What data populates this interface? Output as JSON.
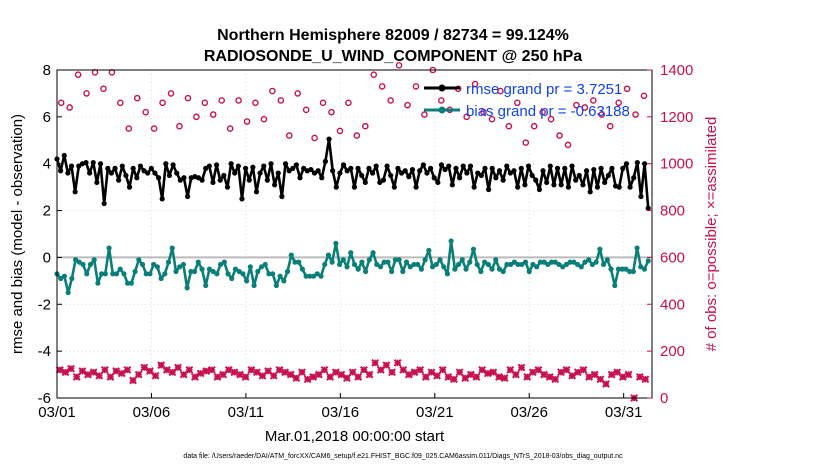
{
  "chart_data": {
    "type": "line",
    "title": "Northern Hemisphere 82009 / 82734 = 99.124%",
    "subtitle": "RADIOSONDE_U_WIND_COMPONENT @ 250 hPa",
    "xlabel": "Mar.01,2018 00:00:00 start",
    "ylabel": "rmse and bias (model - observation)",
    "y2label": "# of obs: o=possible; ×=assimilated",
    "xlim": [
      0,
      31.5
    ],
    "ylim": [
      -6,
      8
    ],
    "y2lim": [
      0,
      1400
    ],
    "xticks": [
      0,
      5,
      10,
      15,
      20,
      25,
      30
    ],
    "xtick_labels": [
      "03/01",
      "03/06",
      "03/11",
      "03/16",
      "03/21",
      "03/26",
      "03/31"
    ],
    "yticks": [
      -6,
      -4,
      -2,
      0,
      2,
      4,
      6,
      8
    ],
    "y2ticks": [
      0,
      200,
      400,
      600,
      800,
      1000,
      1200,
      1400
    ],
    "grid": true,
    "footnote": "data file: /Users/raeder/DAI/ATM_forcXX/CAM6_setup/f.e21.FHIST_BGC.f09_025.CAM6assim.011/Diags_NTrS_2018-03/obs_diag_output.nc",
    "legend": [
      "rmse grand pr = 3.7251",
      "bias grand pr = -0.63188"
    ],
    "colors": {
      "rmse": "#000000",
      "bias": "#0a7f7a",
      "obs": "#c8104e",
      "zero": "#bbbbbb",
      "grid": "#d9d9d9"
    },
    "series": [
      {
        "name": "rmse",
        "axis": "left",
        "values": [
          4.2,
          3.7,
          4.35,
          3.6,
          3.9,
          2.8,
          3.9,
          4.0,
          4.05,
          3.6,
          4.05,
          3.2,
          4.0,
          2.3,
          3.8,
          3.6,
          3.8,
          3.3,
          3.9,
          3.5,
          3.0,
          3.8,
          3.4,
          3.9,
          3.7,
          3.6,
          3.8,
          3.6,
          3.4,
          2.5,
          4.0,
          3.5,
          3.95,
          3.6,
          3.3,
          3.4,
          2.6,
          3.4,
          3.45,
          3.4,
          3.3,
          3.8,
          3.9,
          3.2,
          3.95,
          3.3,
          3.5,
          3.0,
          4.0,
          3.6,
          3.9,
          2.5,
          3.8,
          3.3,
          3.85,
          2.8,
          3.6,
          3.9,
          3.3,
          4.0,
          3.1,
          3.6,
          2.6,
          4.0,
          3.7,
          3.8,
          3.95,
          3.4,
          3.8,
          3.7,
          3.75,
          3.6,
          3.7,
          3.4,
          4.1,
          5.05,
          3.7,
          3.0,
          3.6,
          3.95,
          3.7,
          3.8,
          3.0,
          3.8,
          3.5,
          3.2,
          3.8,
          3.6,
          3.9,
          3.2,
          3.3,
          3.9,
          3.5,
          3.0,
          3.8,
          3.6,
          3.7,
          3.45,
          3.75,
          3.0,
          3.7,
          3.95,
          3.6,
          3.8,
          3.4,
          3.2,
          3.95,
          3.75,
          3.9,
          3.1,
          3.8,
          3.4,
          3.9,
          3.6,
          3.9,
          3.0,
          3.6,
          3.5,
          3.8,
          2.9,
          3.8,
          3.4,
          3.7,
          3.3,
          3.9,
          3.6,
          3.7,
          3.0,
          3.8,
          3.1,
          3.9,
          3.5,
          3.3,
          2.9,
          3.7,
          3.2,
          3.9,
          3.1,
          3.8,
          3.1,
          3.8,
          3.0,
          3.9,
          3.3,
          3.5,
          3.1,
          3.7,
          2.8,
          3.75,
          3.0,
          3.8,
          3.2,
          3.5,
          3.8,
          3.05,
          3.0,
          3.8,
          4.0,
          3.0,
          3.4,
          4.05,
          2.6,
          4.0,
          2.1
        ]
      },
      {
        "name": "bias",
        "axis": "left",
        "values": [
          -0.7,
          -0.9,
          -0.8,
          -1.5,
          -0.9,
          -0.1,
          -0.2,
          -0.3,
          -0.7,
          -0.3,
          -0.1,
          -1.1,
          -0.7,
          -0.7,
          0.4,
          -0.7,
          -0.7,
          -0.5,
          -0.7,
          -1.1,
          -1.1,
          -0.6,
          -0.1,
          -0.3,
          -0.7,
          -0.7,
          -0.3,
          -0.4,
          -0.9,
          -0.7,
          -0.2,
          0.4,
          -0.6,
          -0.4,
          -0.3,
          -1.3,
          -0.6,
          -0.6,
          -0.2,
          -0.5,
          -1.2,
          -0.5,
          -0.6,
          -0.7,
          -0.3,
          -0.2,
          -0.7,
          -0.9,
          -0.5,
          -0.6,
          -0.7,
          -1.0,
          -0.4,
          -1.2,
          -0.6,
          -0.4,
          -0.3,
          -0.7,
          -0.7,
          -1.2,
          -0.8,
          -1.0,
          -0.6,
          0.1,
          -0.2,
          -0.2,
          -0.5,
          -0.8,
          -0.8,
          -0.8,
          -0.7,
          -0.8,
          -0.3,
          0.1,
          -0.2,
          0.6,
          -0.3,
          -0.1,
          -0.4,
          0.2,
          -0.3,
          -0.5,
          -0.2,
          -0.6,
          -0.1,
          0.2,
          -0.3,
          -0.4,
          -0.2,
          -0.2,
          -0.6,
          -0.1,
          -0.1,
          -0.6,
          -0.2,
          -0.4,
          -0.3,
          -0.3,
          -0.5,
          -0.1,
          0.3,
          -0.4,
          -0.3,
          -0.1,
          -0.4,
          -0.7,
          0.7,
          -0.5,
          -0.3,
          -0.1,
          -0.5,
          -0.2,
          0.35,
          -0.3,
          -0.6,
          -0.2,
          -0.3,
          -0.5,
          -0.1,
          -0.5,
          -0.6,
          -0.3,
          -0.3,
          -0.2,
          -0.3,
          -0.3,
          -0.2,
          -0.6,
          -0.3,
          -0.4,
          -0.2,
          -0.2,
          -0.3,
          -0.2,
          -0.2,
          -0.3,
          -0.4,
          -0.3,
          -0.2,
          -0.2,
          -0.3,
          -0.4,
          -0.2,
          -0.1,
          -0.3,
          -0.2,
          0.35,
          -0.3,
          -0.1,
          -0.5,
          -1.2,
          -0.5,
          -0.5,
          -0.5,
          -0.6,
          -0.6,
          0.4,
          -0.4,
          -0.5,
          -0.15
        ]
      },
      {
        "name": "possible obs",
        "axis": "right",
        "values": [
          1260,
          1240,
          1380,
          1300,
          1390,
          1320,
          1390,
          1260,
          1150,
          1280,
          1220,
          1150,
          1260,
          1300,
          1160,
          1280,
          1200,
          1260,
          1210,
          1270,
          1150,
          1270,
          1180,
          1260,
          1190,
          1310,
          1270,
          1120,
          1300,
          1230,
          1110,
          1260,
          1220,
          1140,
          1260,
          1120,
          1160,
          1380,
          1330,
          1270,
          1420,
          1250,
          1330,
          1210,
          1400,
          1270,
          1230,
          1320,
          1200,
          1340,
          1220,
          1190,
          1310,
          1160,
          1260,
          1090,
          1160,
          1220,
          1190,
          1120,
          1080,
          1250,
          1240,
          1270,
          1210,
          1160,
          1260,
          1320,
          1210,
          1290
        ]
      },
      {
        "name": "assimilated obs",
        "axis": "right",
        "values": [
          120,
          110,
          125,
          90,
          115,
          100,
          110,
          95,
          120,
          90,
          115,
          105,
          120,
          75,
          100,
          130,
          115,
          95,
          140,
          120,
          110,
          130,
          100,
          120,
          90,
          105,
          115,
          120,
          90,
          100,
          120,
          110,
          100,
          90,
          120,
          110,
          95,
          115,
          95,
          120,
          110,
          100,
          85,
          110,
          80,
          90,
          100,
          120,
          90,
          110,
          100,
          85,
          110,
          90,
          120,
          100,
          150,
          120,
          140,
          110,
          150,
          120,
          100,
          110,
          120,
          90,
          110,
          95,
          120,
          90,
          80,
          110,
          85,
          100,
          90,
          120,
          105,
          110,
          90,
          85,
          120,
          100,
          130,
          90,
          110,
          120,
          100,
          90,
          80,
          110,
          120,
          95,
          110,
          120,
          90,
          100,
          80,
          60,
          100,
          110,
          90,
          100,
          0,
          90,
          80
        ]
      }
    ]
  }
}
